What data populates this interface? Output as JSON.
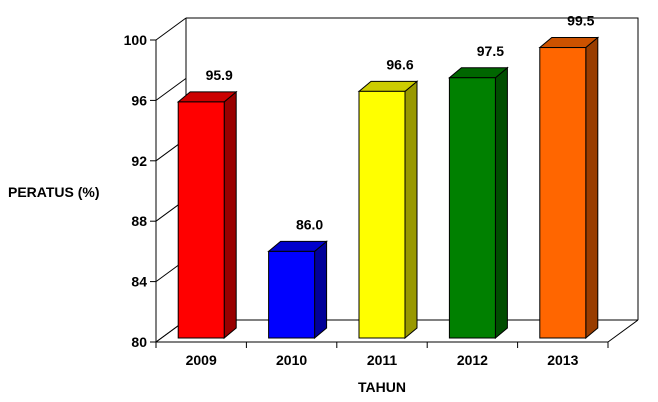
{
  "chart_data": {
    "type": "bar",
    "title": "",
    "xlabel": "TAHUN",
    "ylabel": "PERATUS (%)",
    "ylim": [
      80,
      100
    ],
    "yticks": [
      80,
      84,
      88,
      92,
      96,
      100
    ],
    "grid": false,
    "legend": "none",
    "categories": [
      "2009",
      "2010",
      "2011",
      "2012",
      "2013"
    ],
    "values": [
      95.9,
      86.0,
      96.6,
      97.5,
      99.5
    ],
    "data_labels": [
      "95.9",
      "86.0",
      "96.6",
      "97.5",
      "99.5"
    ],
    "bar_colors": [
      "#ff0000",
      "#0000ff",
      "#ffff00",
      "#008000",
      "#ff6600"
    ],
    "bar_side_colors": [
      "#990000",
      "#000099",
      "#999900",
      "#004d00",
      "#993d00"
    ],
    "bar_top_colors": [
      "#cc0000",
      "#0000cc",
      "#cccc00",
      "#006600",
      "#cc5200"
    ]
  }
}
